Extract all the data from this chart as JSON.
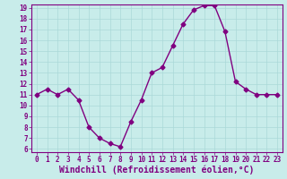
{
  "x": [
    0,
    1,
    2,
    3,
    4,
    5,
    6,
    7,
    8,
    9,
    10,
    11,
    12,
    13,
    14,
    15,
    16,
    17,
    18,
    19,
    20,
    21,
    22,
    23
  ],
  "y": [
    11,
    11.5,
    11,
    11.5,
    10.5,
    8,
    7,
    6.5,
    6.2,
    8.5,
    10.5,
    13,
    13.5,
    15.5,
    17.5,
    18.8,
    19.2,
    19.2,
    16.8,
    12.2,
    11.5,
    11,
    11,
    11
  ],
  "line_color": "#800080",
  "marker": "D",
  "marker_size": 2.5,
  "linewidth": 1.0,
  "xlabel": "Windchill (Refroidissement éolien,°C)",
  "xlabel_fontsize": 7,
  "ylim_min": 6,
  "ylim_max": 19,
  "xlim_min": 0,
  "xlim_max": 23,
  "yticks": [
    6,
    7,
    8,
    9,
    10,
    11,
    12,
    13,
    14,
    15,
    16,
    17,
    18,
    19
  ],
  "xticks": [
    0,
    1,
    2,
    3,
    4,
    5,
    6,
    7,
    8,
    9,
    10,
    11,
    12,
    13,
    14,
    15,
    16,
    17,
    18,
    19,
    20,
    21,
    22,
    23
  ],
  "grid_color": "#aad8d8",
  "bg_color": "#c8ecea",
  "tick_color": "#800080",
  "tick_fontsize": 5.5,
  "spine_color": "#800080"
}
